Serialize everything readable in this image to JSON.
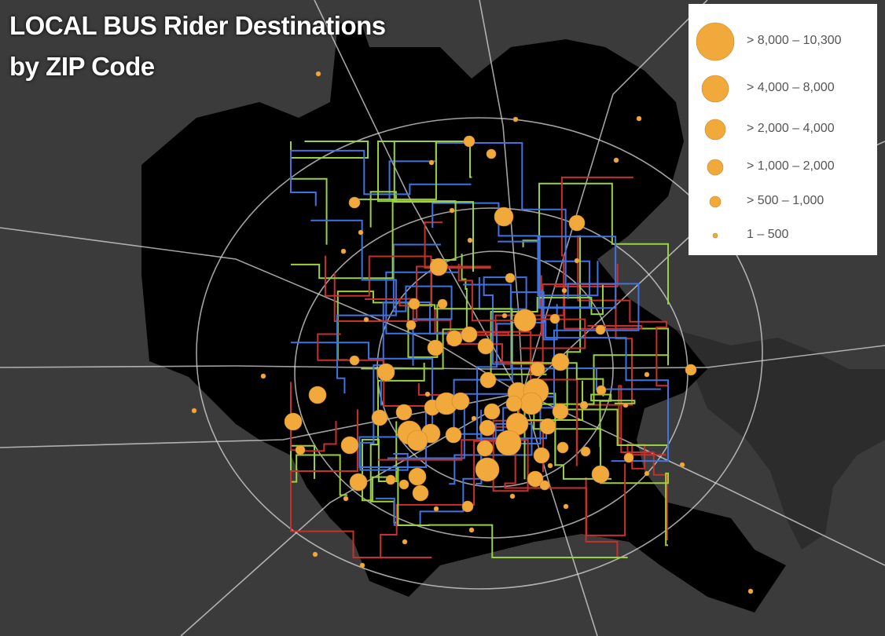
{
  "title": [
    "LOCAL BUS Rider Destinations",
    "by ZIP Code"
  ],
  "legend": {
    "items": [
      "> 8,000 – 10,300",
      "> 4,000 – 8,000",
      "> 2,000 – 4,000",
      "> 1,000 – 2,000",
      "> 500 – 1,000",
      "1 – 500"
    ]
  }
}
